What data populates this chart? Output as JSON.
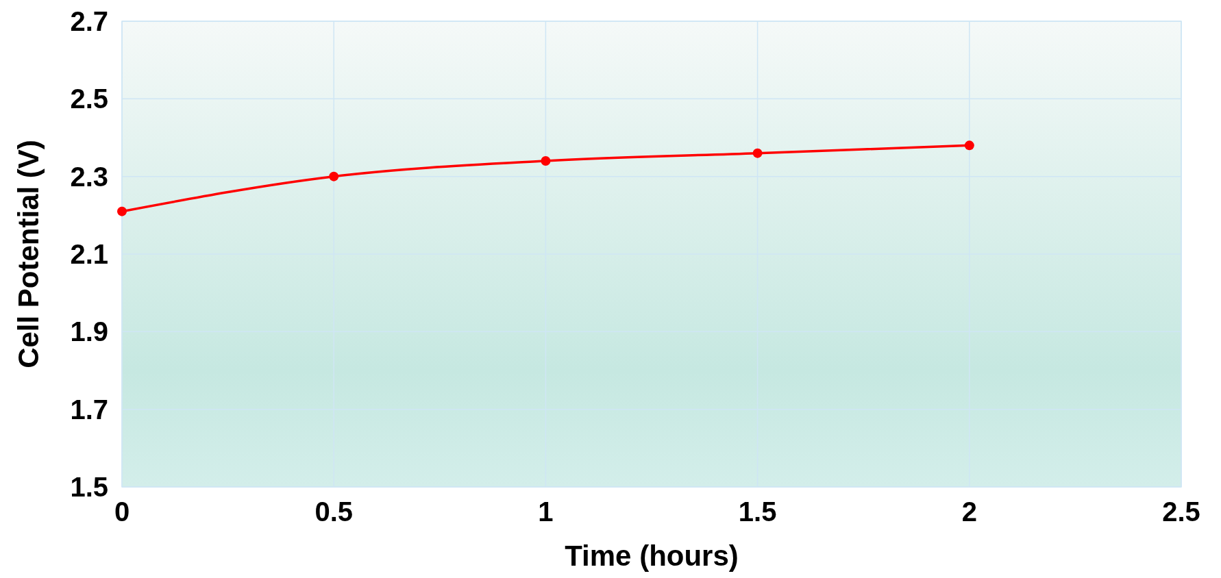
{
  "chart_data": {
    "type": "line",
    "xlabel": "Time (hours)",
    "ylabel": "Cell Potential (V)",
    "x": [
      0,
      0.5,
      1,
      1.5,
      2
    ],
    "series": [
      {
        "color": "#ff0000",
        "values": [
          2.21,
          2.3,
          2.34,
          2.36,
          2.38
        ]
      }
    ],
    "xlim": [
      0,
      2.5
    ],
    "xticks": [
      0,
      0.5,
      1,
      1.5,
      2,
      2.5
    ],
    "ylim": [
      1.5,
      2.7
    ],
    "yticks": [
      1.5,
      1.7,
      1.9,
      2.1,
      2.3,
      2.5,
      2.7
    ],
    "grid": true,
    "marker": "circle",
    "line_style": "solid"
  }
}
